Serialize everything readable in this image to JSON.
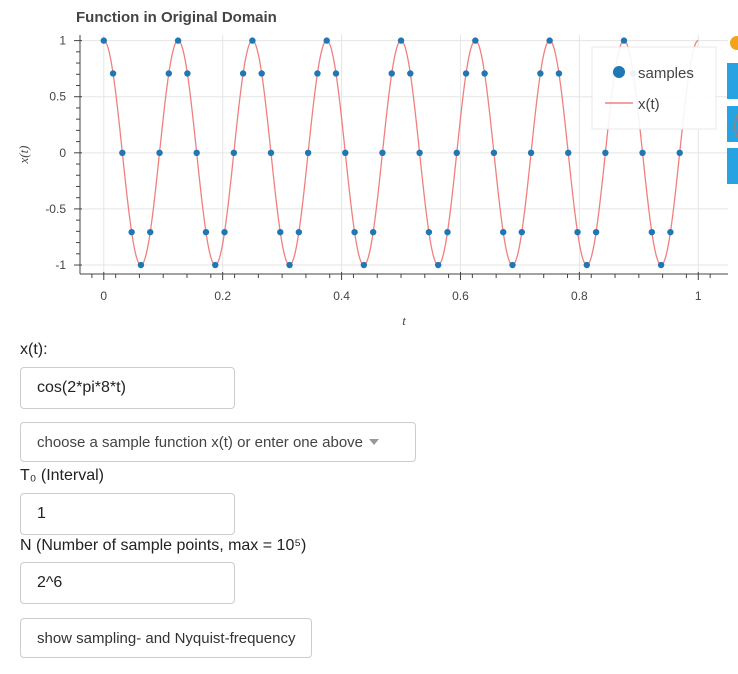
{
  "plot": {
    "title": "Function in Original Domain",
    "chart_data": {
      "type": "scatter",
      "title": "Function in Original Domain",
      "xlabel": "t",
      "ylabel": "x(t)",
      "xlim": [
        -0.04,
        1.05
      ],
      "ylim": [
        -1.08,
        1.05
      ],
      "x_ticks": [
        0,
        0.2,
        0.4,
        0.6,
        0.8,
        1
      ],
      "x_tick_labels": [
        "0",
        "0.2",
        "0.4",
        "0.6",
        "0.8",
        "1"
      ],
      "y_ticks": [
        1,
        0.5,
        0,
        -0.5,
        -1
      ],
      "y_tick_labels": [
        "1",
        "0.5",
        "0",
        "-0.5",
        "-1"
      ],
      "grid": true,
      "legend_position": "top-right",
      "series": [
        {
          "name": "samples",
          "kind": "scatter",
          "color": "#1f77b4",
          "function": "cos(2*pi*8*t)",
          "t_start": 0,
          "t_step": 0.015625,
          "count": 64
        },
        {
          "name": "x(t)",
          "kind": "line",
          "color": "#f08080",
          "function": "cos(2*pi*8*t)",
          "t_start": 0,
          "t_end": 1
        }
      ]
    }
  },
  "form": {
    "xt_label": "x(t):",
    "xt_value": "cos(2*pi*8*t)",
    "select_label": "choose a sample function x(t) or enter one above",
    "t0_label": "T₀ (Interval)",
    "t0_value": "1",
    "n_label": "N (Number of sample points, max = 10⁵)",
    "n_value": "2^6",
    "show_button": "show sampling- and Nyquist-frequency"
  }
}
